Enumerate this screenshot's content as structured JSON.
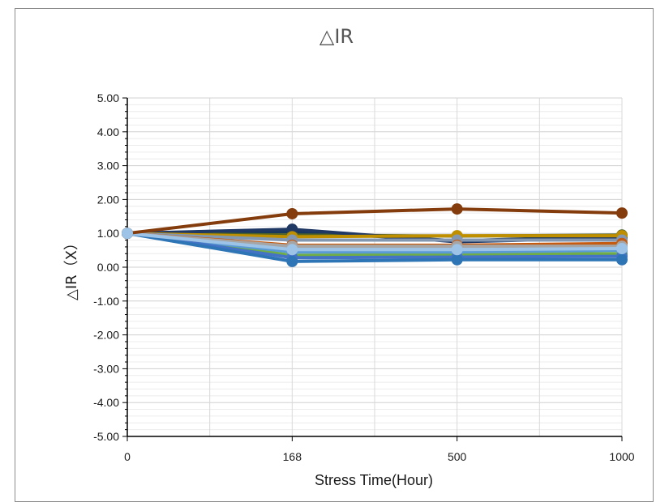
{
  "chart_data": {
    "type": "line",
    "title": "△IR",
    "xlabel": "Stress Time(Hour)",
    "ylabel": "△IR（X）",
    "x": [
      "0",
      "168",
      "500",
      "1000"
    ],
    "y_tick_labels": [
      "5.00",
      "4.00",
      "3.00",
      "2.00",
      "1.00",
      "0.00",
      "-1.00",
      "-2.00",
      "-3.00",
      "-4.00",
      "-5.00"
    ],
    "ylim": [
      -5,
      5
    ],
    "y_major_step": 1,
    "y_minor_step": 0.2,
    "grid": true,
    "legend": "none",
    "series": [
      {
        "color": "#17375e",
        "values": [
          1.0,
          1.05,
          0.78,
          0.92
        ]
      },
      {
        "color": "#4f6228",
        "values": [
          1.0,
          0.95,
          0.92,
          0.95
        ]
      },
      {
        "color": "#1f3864",
        "values": [
          1.0,
          1.12,
          0.75,
          0.87
        ]
      },
      {
        "color": "#bf8f00",
        "values": [
          1.0,
          0.9,
          0.93,
          0.93
        ]
      },
      {
        "color": "#8497b0",
        "values": [
          1.0,
          0.8,
          0.8,
          0.8
        ]
      },
      {
        "color": "#c55a11",
        "values": [
          1.0,
          0.65,
          0.65,
          0.7
        ]
      },
      {
        "color": "#9dc3e6",
        "values": [
          1.0,
          0.55,
          0.55,
          0.6
        ]
      },
      {
        "color": "#70ad47",
        "values": [
          1.0,
          0.35,
          0.38,
          0.4
        ]
      },
      {
        "color": "#5b9bd5",
        "values": [
          1.0,
          0.45,
          0.45,
          0.5
        ]
      },
      {
        "color": "#4472c4",
        "values": [
          1.0,
          0.28,
          0.3,
          0.32
        ]
      },
      {
        "color": "#2e75b6",
        "values": [
          1.0,
          0.17,
          0.22,
          0.22
        ]
      },
      {
        "color": "#a5a5a5",
        "values": [
          1.0,
          0.62,
          0.62,
          0.62
        ]
      },
      {
        "color": "#9dc3e6",
        "values": [
          1.0,
          0.52,
          0.52,
          0.55
        ]
      },
      {
        "color": "#843c0c",
        "values": [
          1.0,
          1.58,
          1.72,
          1.6
        ]
      }
    ]
  }
}
